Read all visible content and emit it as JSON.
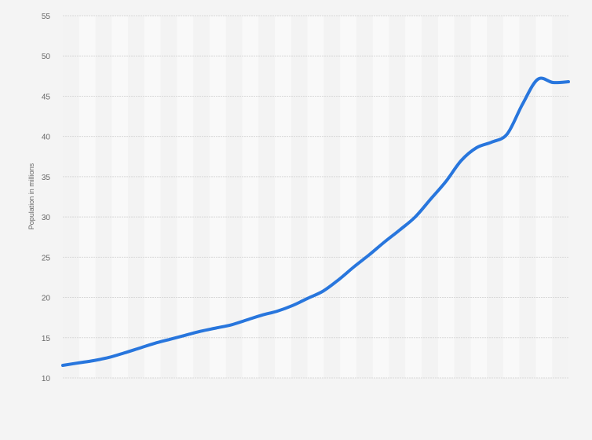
{
  "chart_data": {
    "type": "line",
    "title": "",
    "xlabel": "",
    "ylabel": "Population in millions",
    "ylim": [
      10,
      55
    ],
    "yticks": [
      10,
      15,
      20,
      25,
      30,
      35,
      40,
      45,
      50,
      55
    ],
    "grid": true,
    "line_color": "#2876dd",
    "series": [
      {
        "values": [
          11.56,
          11.86,
          12.15,
          12.54,
          13.1,
          13.7,
          14.3,
          14.8,
          15.3,
          15.8,
          16.2,
          16.6,
          17.2,
          17.8,
          18.3,
          19.0,
          19.9,
          20.8,
          22.2,
          23.8,
          25.3,
          26.9,
          28.4,
          30.0,
          32.2,
          34.4,
          37.0,
          38.6,
          39.3,
          40.3,
          44.0,
          47.1,
          46.7,
          46.8
        ]
      }
    ]
  }
}
